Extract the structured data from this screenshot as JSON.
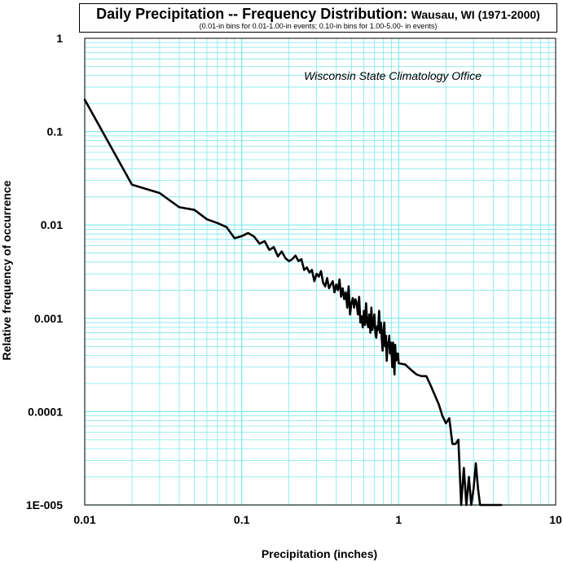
{
  "chart_data": {
    "type": "line",
    "title": "Daily Precipitation -- Frequency Distribution:",
    "title_location": "Wausau, WI (1971-2000)",
    "subtitle": "(0.01-in bins for 0.01-1.00-in events;  0.10-in bins for 1.00-5.00- in events)",
    "annotation": "Wisconsin State Climatology Office",
    "xlabel": "Precipitation (inches)",
    "ylabel": "Relative frequency of occurrence",
    "x_scale": "log",
    "y_scale": "log",
    "xlim": [
      0.01,
      10
    ],
    "ylim": [
      1e-05,
      1
    ],
    "grid": true,
    "colors": {
      "grid": "#7fe8ec",
      "line": "#000000"
    },
    "x_ticks": [
      {
        "value": 0.01,
        "label": "0.01"
      },
      {
        "value": 0.1,
        "label": "0.1"
      },
      {
        "value": 1,
        "label": "1"
      },
      {
        "value": 10,
        "label": "10"
      }
    ],
    "y_ticks": [
      {
        "value": 1,
        "label": "1"
      },
      {
        "value": 0.1,
        "label": "0.1"
      },
      {
        "value": 0.01,
        "label": "0.01"
      },
      {
        "value": 0.001,
        "label": "0.001"
      },
      {
        "value": 0.0001,
        "label": "0.0001"
      },
      {
        "value": 1e-05,
        "label": "1E-005"
      }
    ],
    "series": [
      {
        "x": [
          0.01,
          0.02,
          0.03,
          0.04,
          0.05,
          0.06,
          0.07,
          0.08,
          0.09,
          0.1,
          0.11,
          0.12,
          0.13,
          0.14,
          0.15,
          0.16,
          0.17,
          0.18,
          0.19,
          0.2,
          0.21,
          0.22,
          0.23,
          0.24,
          0.25,
          0.26,
          0.27,
          0.28,
          0.29,
          0.3,
          0.31,
          0.32,
          0.33,
          0.34,
          0.35,
          0.36,
          0.37,
          0.38,
          0.39,
          0.4,
          0.41,
          0.42,
          0.43,
          0.44,
          0.45,
          0.46,
          0.47,
          0.48,
          0.49,
          0.5,
          0.51,
          0.52,
          0.53,
          0.54,
          0.55,
          0.56,
          0.57,
          0.58,
          0.59,
          0.6,
          0.61,
          0.62,
          0.63,
          0.64,
          0.65,
          0.66,
          0.67,
          0.68,
          0.69,
          0.7,
          0.71,
          0.72,
          0.73,
          0.74,
          0.75,
          0.76,
          0.77,
          0.78,
          0.79,
          0.8,
          0.81,
          0.82,
          0.83,
          0.84,
          0.85,
          0.86,
          0.87,
          0.88,
          0.89,
          0.9,
          0.91,
          0.92,
          0.93,
          0.94,
          0.95,
          0.96,
          0.97,
          0.98,
          0.99,
          1.0,
          1.1,
          1.2,
          1.3,
          1.4,
          1.5,
          1.6,
          1.7,
          1.8,
          1.9,
          2.0,
          2.1,
          2.2,
          2.3,
          2.4,
          2.5,
          2.6,
          2.7,
          2.8,
          2.9,
          3.0,
          3.1,
          3.2,
          3.3,
          3.4,
          3.5,
          3.6,
          3.7,
          3.8,
          3.9,
          4.0,
          4.1,
          4.2,
          4.3,
          4.4,
          4.5
        ],
        "y": [
          0.22,
          0.027,
          0.022,
          0.0155,
          0.0145,
          0.0115,
          0.0105,
          0.0095,
          0.0072,
          0.0076,
          0.0082,
          0.0075,
          0.0063,
          0.0067,
          0.0054,
          0.0058,
          0.0046,
          0.0052,
          0.0044,
          0.0041,
          0.0043,
          0.0047,
          0.0041,
          0.0043,
          0.0033,
          0.0035,
          0.0031,
          0.0033,
          0.0025,
          0.003,
          0.0028,
          0.0032,
          0.0024,
          0.0022,
          0.0027,
          0.0021,
          0.0023,
          0.0025,
          0.0019,
          0.0023,
          0.002,
          0.0026,
          0.0017,
          0.0021,
          0.0016,
          0.0019,
          0.0013,
          0.0022,
          0.0011,
          0.00145,
          0.00165,
          0.0013,
          0.0016,
          0.00145,
          0.0011,
          0.0017,
          0.0009,
          0.00105,
          0.0008,
          0.0012,
          0.00085,
          0.00145,
          0.0009,
          0.0008,
          0.0011,
          0.0007,
          0.0013,
          0.00075,
          0.0009,
          0.0011,
          0.0007,
          0.00062,
          0.00082,
          0.00075,
          0.0012,
          0.0007,
          0.0009,
          0.00062,
          0.00045,
          0.00075,
          0.0009,
          0.0005,
          0.00065,
          0.00035,
          0.00055,
          0.0005,
          0.00065,
          0.00042,
          0.00055,
          0.00045,
          0.0003,
          0.00055,
          0.00035,
          0.00025,
          0.00052,
          0.00035,
          0.00042,
          0.00036,
          0.00042,
          0.00033,
          0.00032,
          0.00028,
          0.00025,
          0.00024,
          0.00024,
          0.00019,
          0.00015,
          0.00012,
          9e-05,
          7.5e-05,
          8.5e-05,
          4.5e-05,
          4.5e-05,
          5e-05,
          1e-05,
          2.5e-05,
          1e-05,
          2e-05,
          1e-05,
          1.5e-05,
          2.8e-05,
          1.5e-05,
          1e-05,
          1e-05,
          1e-05,
          1e-05,
          1e-05,
          1e-05,
          1e-05,
          1e-05,
          1e-05,
          1e-05,
          1e-05,
          1e-05,
          1e-05
        ]
      }
    ]
  }
}
